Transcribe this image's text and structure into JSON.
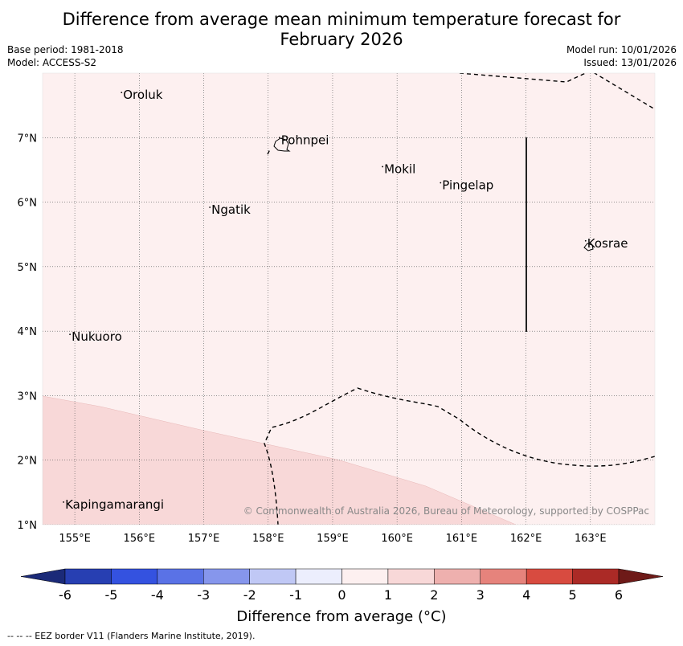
{
  "title": {
    "line1": "Difference from average mean minimum temperature forecast for",
    "line2": "February 2026"
  },
  "meta": {
    "base_period": "Base period: 1981-2018",
    "model": "Model: ACCESS-S2",
    "model_run": "Model run: 10/01/2026",
    "issued": "Issued: 13/01/2026"
  },
  "map": {
    "lon_range": [
      154.5,
      164.0
    ],
    "lat_range": [
      1.0,
      8.0
    ],
    "lon_ticks": [
      155,
      156,
      157,
      158,
      159,
      160,
      161,
      162,
      163
    ],
    "lat_ticks": [
      1,
      2,
      3,
      4,
      5,
      6,
      7
    ],
    "lon_tick_labels": [
      "155°E",
      "156°E",
      "157°E",
      "158°E",
      "159°E",
      "160°E",
      "161°E",
      "162°E",
      "163°E"
    ],
    "lat_tick_labels": [
      "1°N",
      "2°N",
      "3°N",
      "4°N",
      "5°N",
      "6°N",
      "7°N"
    ],
    "background_category": "0 to 1",
    "shaded_region_category": "1 to 2",
    "places": [
      {
        "name": "Oroluk",
        "lon": 155.75,
        "lat": 7.6
      },
      {
        "name": "Pohnpei",
        "lon": 158.2,
        "lat": 6.9
      },
      {
        "name": "Mokil",
        "lon": 159.8,
        "lat": 6.45
      },
      {
        "name": "Pingelap",
        "lon": 160.7,
        "lat": 6.2
      },
      {
        "name": "Ngatik",
        "lon": 157.12,
        "lat": 5.82
      },
      {
        "name": "Kosrae",
        "lon": 162.95,
        "lat": 5.3
      },
      {
        "name": "Nukuoro",
        "lon": 154.95,
        "lat": 3.85
      },
      {
        "name": "Kapingamarangi",
        "lon": 154.85,
        "lat": 1.25
      }
    ],
    "copyright": "© Commonwealth of Australia 2026, Bureau of Meteorology, supported by COSPPac"
  },
  "colorbar": {
    "ticks": [
      "-6",
      "-5",
      "-4",
      "-3",
      "-2",
      "-1",
      "0",
      "1",
      "2",
      "3",
      "4",
      "5",
      "6"
    ],
    "colors": [
      "#273fb2",
      "#3452e0",
      "#5a72e6",
      "#8696ec",
      "#c0c8f5",
      "#eceefd",
      "#fdf0f0",
      "#f8d8d8",
      "#eeb0ae",
      "#e6837c",
      "#d84b40",
      "#ab2a26"
    ],
    "low_extension_color": "#1b2a78",
    "high_extension_color": "#6e1a18",
    "label": "Difference from average (°C)"
  },
  "footer": "--  --  -- EEZ border V11 (Flanders Marine Institute, 2019)."
}
